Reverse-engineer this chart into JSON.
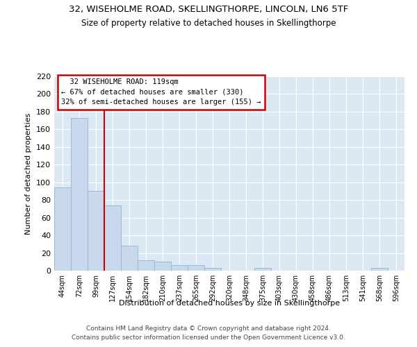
{
  "title1": "32, WISEHOLME ROAD, SKELLINGTHORPE, LINCOLN, LN6 5TF",
  "title2": "Size of property relative to detached houses in Skellingthorpe",
  "xlabel": "Distribution of detached houses by size in Skellingthorpe",
  "ylabel": "Number of detached properties",
  "bin_labels": [
    "44sqm",
    "72sqm",
    "99sqm",
    "127sqm",
    "154sqm",
    "182sqm",
    "210sqm",
    "237sqm",
    "265sqm",
    "292sqm",
    "320sqm",
    "348sqm",
    "375sqm",
    "403sqm",
    "430sqm",
    "458sqm",
    "486sqm",
    "513sqm",
    "541sqm",
    "568sqm",
    "596sqm"
  ],
  "bar_heights": [
    94,
    173,
    90,
    74,
    28,
    12,
    10,
    6,
    6,
    3,
    0,
    0,
    3,
    0,
    0,
    0,
    0,
    0,
    0,
    3,
    0
  ],
  "bar_color": "#c8d9ee",
  "bar_edge_color": "#9ab8d8",
  "vline_x_index": 2.5,
  "vline_color": "#cc0000",
  "annotation_title": "32 WISEHOLME ROAD: 119sqm",
  "annotation_line1": "← 67% of detached houses are smaller (330)",
  "annotation_line2": "32% of semi-detached houses are larger (155) →",
  "footer1": "Contains HM Land Registry data © Crown copyright and database right 2024.",
  "footer2": "Contains public sector information licensed under the Open Government Licence v3.0.",
  "fig_bg_color": "#ffffff",
  "plot_bg_color": "#dde8f5",
  "ylim": [
    0,
    220
  ],
  "yticks": [
    0,
    20,
    40,
    60,
    80,
    100,
    120,
    140,
    160,
    180,
    200,
    220
  ]
}
